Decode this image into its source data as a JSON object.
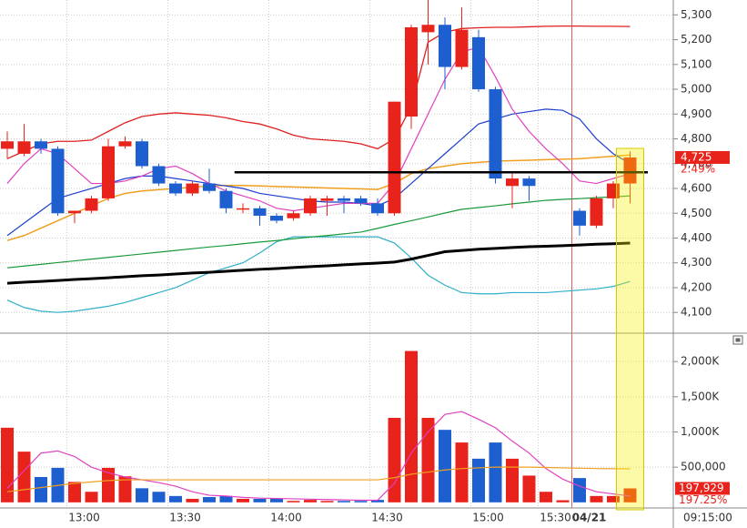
{
  "chart_data": [
    {
      "type": "candlestick",
      "open": [
        4760,
        4740,
        4790,
        4760,
        4500,
        4510,
        4560,
        4770,
        4790,
        4690,
        4620,
        4580,
        4620,
        4590,
        4515,
        4520,
        4490,
        4480,
        4500,
        4550,
        4560,
        4560,
        4540,
        4500,
        4890,
        5230,
        5260,
        5090,
        5210,
        5000,
        4610,
        4640,
        null,
        null,
        4510,
        4450,
        4560,
        4620
      ],
      "high": [
        4830,
        4860,
        4800,
        4770,
        4510,
        4570,
        4800,
        4810,
        4800,
        4700,
        4630,
        4630,
        4680,
        4600,
        4540,
        4530,
        4500,
        4510,
        4570,
        4570,
        4570,
        4570,
        4560,
        4950,
        5260,
        5360,
        5290,
        5330,
        5240,
        5010,
        4660,
        4650,
        null,
        null,
        4520,
        4570,
        4630,
        4750
      ],
      "low": [
        4720,
        4730,
        4740,
        4490,
        4460,
        4500,
        4550,
        4760,
        4680,
        4610,
        4570,
        4570,
        4580,
        4500,
        4500,
        4450,
        4460,
        4470,
        4490,
        4490,
        4500,
        4530,
        4490,
        4490,
        4840,
        5100,
        5000,
        5080,
        4990,
        4620,
        4520,
        4550,
        null,
        null,
        4410,
        4440,
        4520,
        4540
      ],
      "close": [
        4790,
        4790,
        4760,
        4500,
        4510,
        4560,
        4770,
        4790,
        4690,
        4620,
        4580,
        4620,
        4590,
        4520,
        4520,
        4490,
        4470,
        4500,
        4560,
        4560,
        4550,
        4540,
        4500,
        4950,
        5250,
        5260,
        5090,
        5240,
        5000,
        4640,
        4640,
        4610,
        null,
        null,
        4450,
        4560,
        4620,
        4725
      ],
      "up_color": "#e8231b",
      "down_color": "#1e5fd0",
      "ylim": [
        4020,
        5360
      ],
      "yticks": [
        {
          "value": 5300,
          "label": "5,300"
        },
        {
          "value": 5200,
          "label": "5,200"
        },
        {
          "value": 5100,
          "label": "5,100"
        },
        {
          "value": 5000,
          "label": "5,000"
        },
        {
          "value": 4900,
          "label": "4,900"
        },
        {
          "value": 4800,
          "label": "4,800"
        },
        {
          "value": 4700,
          "label": "4,700"
        },
        {
          "value": 4600,
          "label": "4,600"
        },
        {
          "value": 4500,
          "label": "4,500"
        },
        {
          "value": 4400,
          "label": "4,400"
        },
        {
          "value": 4300,
          "label": "4,300"
        },
        {
          "value": 4200,
          "label": "4,200"
        },
        {
          "value": 4100,
          "label": "4,100"
        }
      ],
      "lines": [
        {
          "color": "#e02020",
          "width": 1.3,
          "values": [
            4720,
            4750,
            4780,
            4790,
            4790,
            4795,
            4830,
            4865,
            4890,
            4900,
            4905,
            4900,
            4895,
            4885,
            4870,
            4860,
            4840,
            4815,
            4800,
            4795,
            4790,
            4780,
            4760,
            4800,
            4930,
            5190,
            5230,
            5245,
            5248,
            5250,
            5250,
            5252,
            5254,
            5255,
            5255,
            5254,
            5254,
            5253
          ]
        },
        {
          "color": "#30b0c8",
          "width": 1.2,
          "values": [
            4150,
            4120,
            4105,
            4100,
            4105,
            4115,
            4125,
            4140,
            4160,
            4180,
            4200,
            4230,
            4260,
            4280,
            4300,
            4340,
            4385,
            4405,
            4405,
            4405,
            4405,
            4405,
            4405,
            4380,
            4320,
            4250,
            4210,
            4180,
            4175,
            4175,
            4180,
            4180,
            4180,
            4185,
            4190,
            4195,
            4205,
            4225
          ]
        },
        {
          "color": "#1a9a3a",
          "width": 1.2,
          "values": [
            4280,
            4287,
            4294,
            4301,
            4308,
            4315,
            4322,
            4329,
            4336,
            4343,
            4350,
            4357,
            4364,
            4370,
            4377,
            4384,
            4390,
            4397,
            4404,
            4410,
            4417,
            4424,
            4439,
            4455,
            4470,
            4485,
            4501,
            4516,
            4523,
            4530,
            4538,
            4545,
            4552,
            4556,
            4559,
            4563,
            4566,
            4570
          ]
        },
        {
          "color": "#000000",
          "width": 3,
          "values": [
            4218,
            4222,
            4225,
            4229,
            4233,
            4236,
            4240,
            4244,
            4248,
            4251,
            4255,
            4259,
            4262,
            4266,
            4270,
            4274,
            4277,
            4281,
            4285,
            4288,
            4292,
            4296,
            4299,
            4303,
            4315,
            4330,
            4345,
            4350,
            4355,
            4358,
            4362,
            4365,
            4367,
            4369,
            4372,
            4375,
            4377,
            4380
          ]
        },
        {
          "color": "#f0a020",
          "width": 1.5,
          "values": [
            4390,
            4410,
            4440,
            4470,
            4500,
            4530,
            4560,
            4580,
            4590,
            4595,
            4600,
            4605,
            4610,
            4612,
            4612,
            4610,
            4608,
            4606,
            4604,
            4602,
            4600,
            4598,
            4596,
            4620,
            4660,
            4680,
            4690,
            4700,
            4705,
            4710,
            4712,
            4714,
            4716,
            4718,
            4720,
            4725,
            4730,
            4735
          ]
        },
        {
          "color": "#1c3fd0",
          "width": 1.2,
          "values": [
            4410,
            4460,
            4510,
            4560,
            4580,
            4600,
            4620,
            4640,
            4650,
            4650,
            4640,
            4630,
            4620,
            4610,
            4600,
            4580,
            4570,
            4560,
            4550,
            4545,
            4545,
            4540,
            4530,
            4560,
            4620,
            4680,
            4740,
            4800,
            4860,
            4880,
            4900,
            4910,
            4920,
            4915,
            4880,
            4800,
            4740,
            4700
          ]
        },
        {
          "color": "#e040c0",
          "width": 1.2,
          "values": [
            4620,
            4700,
            4760,
            4740,
            4680,
            4620,
            4620,
            4630,
            4650,
            4680,
            4690,
            4660,
            4620,
            4590,
            4570,
            4550,
            4520,
            4510,
            4520,
            4530,
            4540,
            4540,
            4540,
            4620,
            4760,
            4900,
            5040,
            5150,
            5170,
            5050,
            4920,
            4830,
            4760,
            4700,
            4630,
            4620,
            4640,
            4660
          ]
        }
      ],
      "ref_line": 4665,
      "last_price": {
        "value": 4725,
        "label": "4,725"
      },
      "change_label": "2.49%"
    },
    {
      "type": "bar",
      "categories": [
        null,
        null,
        null,
        null,
        null,
        "13:00",
        null,
        null,
        null,
        null,
        null,
        "13:30",
        null,
        null,
        null,
        null,
        null,
        "14:00",
        null,
        null,
        null,
        null,
        null,
        "14:30",
        null,
        null,
        null,
        null,
        null,
        "15:00",
        null,
        null,
        null,
        "15:30",
        null,
        "04/21",
        null,
        null
      ],
      "values": [
        1060000,
        720000,
        360000,
        490000,
        290000,
        150000,
        490000,
        370000,
        200000,
        150000,
        90000,
        50000,
        75000,
        90000,
        50000,
        50000,
        50000,
        20000,
        35000,
        20000,
        20000,
        20000,
        35000,
        1200000,
        2150000,
        1200000,
        1030000,
        850000,
        620000,
        850000,
        620000,
        380000,
        150000,
        30000,
        345000,
        90000,
        90000,
        197929
      ],
      "colors": [
        "#e8231b",
        "#e8231b",
        "#1e5fd0",
        "#1e5fd0",
        "#e8231b",
        "#e8231b",
        "#e8231b",
        "#e8231b",
        "#1e5fd0",
        "#1e5fd0",
        "#1e5fd0",
        "#e8231b",
        "#1e5fd0",
        "#1e5fd0",
        "#e8231b",
        "#1e5fd0",
        "#1e5fd0",
        "#e8231b",
        "#e8231b",
        "#e8231b",
        "#1e5fd0",
        "#1e5fd0",
        "#1e5fd0",
        "#e8231b",
        "#e8231b",
        "#e8231b",
        "#1e5fd0",
        "#e8231b",
        "#1e5fd0",
        "#1e5fd0",
        "#e8231b",
        "#e8231b",
        "#e8231b",
        "#e8231b",
        "#1e5fd0",
        "#e8231b",
        "#e8231b",
        "#e8231b"
      ],
      "ylim": [
        -80000,
        2390000
      ],
      "yticks": [
        {
          "value": 2000000,
          "label": "2,000K"
        },
        {
          "value": 1500000,
          "label": "1,500K"
        },
        {
          "value": 1000000,
          "label": "1,000K"
        },
        {
          "value": 500000,
          "label": "500,000"
        }
      ],
      "lines": [
        {
          "color": "#e040c0",
          "width": 1.2,
          "values": [
            200000,
            450000,
            700000,
            730000,
            650000,
            500000,
            420000,
            360000,
            320000,
            280000,
            230000,
            150000,
            100000,
            90000,
            70000,
            60000,
            55000,
            50000,
            45000,
            40000,
            35000,
            30000,
            30000,
            270000,
            700000,
            1000000,
            1250000,
            1290000,
            1180000,
            1060000,
            870000,
            700000,
            480000,
            330000,
            230000,
            150000,
            120000,
            90000
          ]
        },
        {
          "color": "#f0a020",
          "width": 1.2,
          "values": [
            150000,
            180000,
            210000,
            240000,
            270000,
            290000,
            310000,
            320000,
            320000,
            320000,
            320000,
            320000,
            320000,
            320000,
            320000,
            320000,
            320000,
            320000,
            320000,
            320000,
            320000,
            320000,
            320000,
            350000,
            400000,
            430000,
            460000,
            480000,
            490000,
            500000,
            500000,
            500000,
            495000,
            490000,
            485000,
            480000,
            478000,
            475000
          ]
        }
      ],
      "last_volume": {
        "value": 197929,
        "label": "197,929"
      },
      "change_label": "197.25%",
      "cursor_time": "09:15:00"
    }
  ]
}
